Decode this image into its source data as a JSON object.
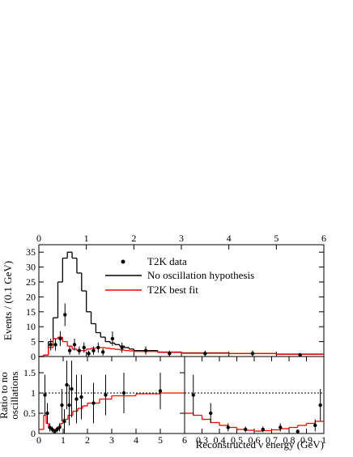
{
  "chart_data": [
    {
      "type": "histogram",
      "ylabel": "Events / (0.1 GeV)",
      "xlim": [
        0,
        6
      ],
      "xticks": [
        0,
        1,
        2,
        3,
        4,
        5,
        6
      ],
      "xtick_side": "top",
      "ylim": [
        0,
        37.5
      ],
      "yticks": [
        0,
        5,
        10,
        15,
        20,
        25,
        30,
        35
      ],
      "legend": "upper center",
      "series": [
        {
          "name": "No oscillation hypothesis",
          "color": "#000000",
          "style": "step",
          "bins": [
            0,
            0.1,
            0.2,
            0.3,
            0.4,
            0.5,
            0.6,
            0.7,
            0.8,
            0.9,
            1.0,
            1.1,
            1.2,
            1.3,
            1.4,
            1.5,
            1.6,
            1.7,
            1.8,
            1.9,
            2.0,
            2.5,
            3.0,
            4.0,
            5.0,
            6.0
          ],
          "values": [
            0,
            0.5,
            5,
            13,
            25,
            33,
            35,
            33,
            28,
            22,
            15,
            11,
            8,
            6.5,
            5,
            4.5,
            4,
            3.5,
            3,
            2.5,
            2,
            1.5,
            1.2,
            1,
            0.8
          ]
        },
        {
          "name": "T2K best fit",
          "color": "#ff0000",
          "style": "step",
          "bins": [
            0,
            0.1,
            0.2,
            0.3,
            0.4,
            0.5,
            0.6,
            0.7,
            0.8,
            0.9,
            1.0,
            1.1,
            1.2,
            1.3,
            1.4,
            1.5,
            1.6,
            1.7,
            1.8,
            1.9,
            2.0,
            2.5,
            3.0,
            4.0,
            5.0,
            6.0
          ],
          "values": [
            0,
            0.5,
            3,
            6,
            6.5,
            5,
            3.5,
            2.5,
            2,
            2,
            2.5,
            2.8,
            3,
            3,
            2.8,
            2.6,
            2.4,
            2.2,
            2,
            1.9,
            1.7,
            1.4,
            1.1,
            1,
            0.8
          ]
        },
        {
          "name": "T2K data",
          "color": "#000000",
          "style": "points",
          "x": [
            0.25,
            0.35,
            0.45,
            0.55,
            0.65,
            0.75,
            0.85,
            0.95,
            1.05,
            1.15,
            1.25,
            1.35,
            1.55,
            1.75,
            2.25,
            2.75,
            3.5,
            4.5,
            5.5
          ],
          "values": [
            4,
            4,
            6,
            14,
            2,
            4,
            2,
            3,
            1,
            2,
            3,
            1.5,
            6,
            3,
            2,
            1,
            1,
            1,
            0.5
          ],
          "errors": [
            2,
            2,
            2.5,
            3.8,
            1.4,
            2,
            1.4,
            1.7,
            1,
            1.4,
            1.7,
            1.2,
            2.4,
            1.7,
            1.4,
            1,
            1,
            1,
            0.7
          ]
        }
      ]
    },
    {
      "type": "histogram",
      "ylabel": [
        "Ratio to no",
        "oscillations"
      ],
      "xlim": [
        0,
        6
      ],
      "xticks": [
        0,
        1,
        2,
        3,
        4,
        5,
        6
      ],
      "xtick_side": "bottom",
      "ylim": [
        0,
        1.9
      ],
      "yticks": [
        0,
        0.5,
        1,
        1.5
      ],
      "ref_line": 1,
      "series": [
        {
          "color": "#ff0000",
          "style": "step",
          "bins": [
            0,
            0.2,
            0.3,
            0.4,
            0.5,
            0.6,
            0.7,
            0.8,
            0.9,
            1.0,
            1.2,
            1.4,
            1.6,
            1.8,
            2.0,
            2.5,
            3.0,
            4.0,
            5.0,
            6.0
          ],
          "values": [
            0.1,
            0.45,
            0.25,
            0.15,
            0.1,
            0.1,
            0.1,
            0.15,
            0.25,
            0.35,
            0.45,
            0.55,
            0.62,
            0.68,
            0.75,
            0.85,
            0.93,
            0.98,
            1
          ]
        },
        {
          "color": "#000000",
          "style": "points",
          "x": [
            0.25,
            0.35,
            0.45,
            0.55,
            0.65,
            0.75,
            0.85,
            0.95,
            1.05,
            1.15,
            1.25,
            1.35,
            1.55,
            1.75,
            2.25,
            2.75,
            3.5,
            5.0
          ],
          "values": [
            0.95,
            0.5,
            0.15,
            0.1,
            0.05,
            0.1,
            0.15,
            0.7,
            0.3,
            1.2,
            0.7,
            1.1,
            0.85,
            0.9,
            0.75,
            0.95,
            1,
            1.05
          ],
          "errors": [
            0.5,
            0.25,
            0.1,
            0.07,
            0.05,
            0.07,
            0.1,
            0.4,
            0.3,
            0.6,
            0.5,
            0.7,
            0.6,
            0.55,
            0.5,
            0.5,
            0.5,
            0.45
          ]
        }
      ]
    },
    {
      "type": "histogram",
      "xlabel": "Reconstructed ν energy (GeV)",
      "xlim": [
        0.2,
        1
      ],
      "xticks": [
        0.3,
        0.4,
        0.5,
        0.6,
        0.7,
        0.8,
        0.9,
        1
      ],
      "xtick_side": "bottom",
      "ylim": [
        0,
        1.9
      ],
      "ref_line": 1,
      "series": [
        {
          "color": "#ff0000",
          "style": "step",
          "bins": [
            0.2,
            0.25,
            0.3,
            0.35,
            0.4,
            0.45,
            0.5,
            0.55,
            0.6,
            0.65,
            0.7,
            0.75,
            0.8,
            0.85,
            0.9,
            0.95,
            1
          ],
          "values": [
            0.5,
            0.45,
            0.35,
            0.27,
            0.2,
            0.15,
            0.1,
            0.08,
            0.06,
            0.07,
            0.09,
            0.12,
            0.15,
            0.2,
            0.25,
            0.3
          ]
        },
        {
          "color": "#000000",
          "style": "points",
          "x": [
            0.25,
            0.35,
            0.45,
            0.55,
            0.65,
            0.75,
            0.85,
            0.95,
            0.98
          ],
          "values": [
            0.95,
            0.5,
            0.15,
            0.1,
            0.1,
            0.15,
            0.05,
            0.2,
            0.7
          ],
          "errors": [
            0.5,
            0.25,
            0.1,
            0.07,
            0.07,
            0.1,
            0.05,
            0.15,
            0.4
          ]
        }
      ]
    }
  ]
}
